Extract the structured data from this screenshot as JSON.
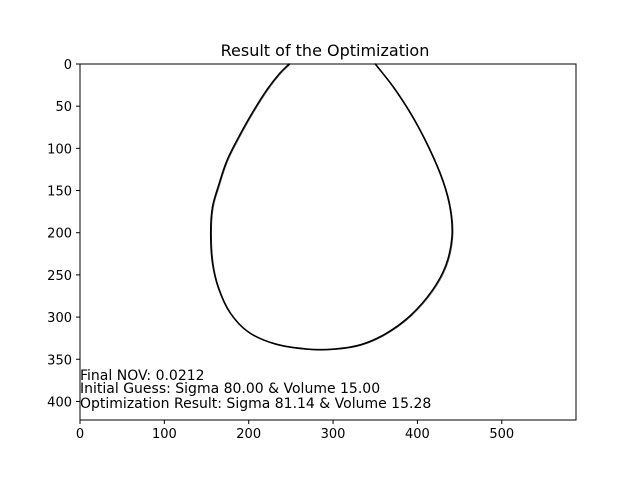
{
  "chart_data": {
    "type": "scatter",
    "title": "Result of the Optimization",
    "xlabel": "",
    "ylabel": "",
    "xlim": [
      0,
      588
    ],
    "ylim": [
      422,
      0
    ],
    "y_inverted": true,
    "x_ticks": [
      0,
      100,
      200,
      300,
      400,
      500
    ],
    "y_ticks": [
      0,
      50,
      100,
      150,
      200,
      250,
      300,
      350,
      400
    ],
    "grid": false,
    "line_color": "#000000",
    "series": [
      {
        "values": [
          [
            248,
            0
          ],
          [
            236,
            12
          ],
          [
            222,
            30
          ],
          [
            206,
            55
          ],
          [
            189,
            85
          ],
          [
            174,
            115
          ],
          [
            164,
            145
          ],
          [
            157,
            170
          ],
          [
            155,
            200
          ],
          [
            157,
            235
          ],
          [
            164,
            265
          ],
          [
            178,
            295
          ],
          [
            200,
            318
          ],
          [
            232,
            332
          ],
          [
            270,
            338
          ],
          [
            300,
            338
          ],
          [
            332,
            333
          ],
          [
            362,
            320
          ],
          [
            392,
            298
          ],
          [
            418,
            268
          ],
          [
            434,
            238
          ],
          [
            441,
            205
          ],
          [
            439,
            172
          ],
          [
            430,
            138
          ],
          [
            414,
            100
          ],
          [
            394,
            62
          ],
          [
            372,
            28
          ],
          [
            350,
            0
          ]
        ]
      }
    ],
    "annotations": [
      "Final NOV: 0.0212",
      "Initial Guess: Sigma 80.00 & Volume 15.00",
      "Optimization Result: Sigma 81.14 & Volume 15.28"
    ]
  }
}
